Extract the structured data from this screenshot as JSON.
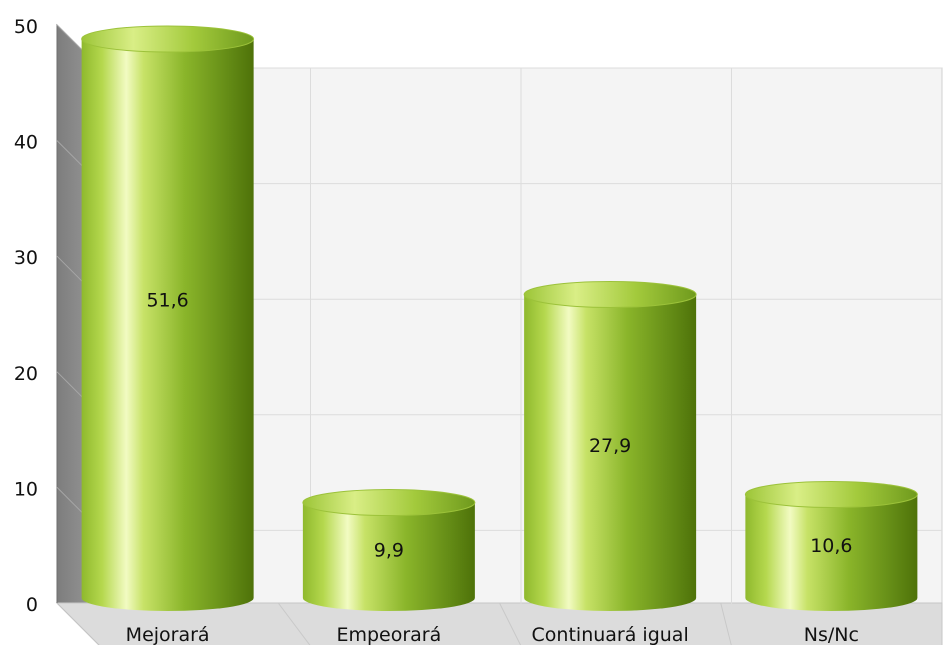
{
  "chart_data": {
    "type": "bar",
    "style": "3d-cylinder",
    "categories": [
      "Mejorará",
      "Empeorará",
      "Continuará igual",
      "Ns/Nc"
    ],
    "values": [
      51.6,
      9.9,
      27.9,
      10.6
    ],
    "data_labels": [
      "51,6",
      "9,9",
      "27,9",
      "10,6"
    ],
    "ylim": [
      0,
      50
    ],
    "yticks": [
      "0",
      "10",
      "20",
      "30",
      "40",
      "50"
    ],
    "grid": true,
    "legend": "none",
    "colors": {
      "bar": "#8ab52a",
      "bar_dark": "#557a10",
      "bar_highlight": "#eef7b8",
      "back_wall": "#f4f4f4",
      "side_wall": "#8c8c8c",
      "floor": "#dcdcdc",
      "grid": "#dcdcdc"
    }
  }
}
